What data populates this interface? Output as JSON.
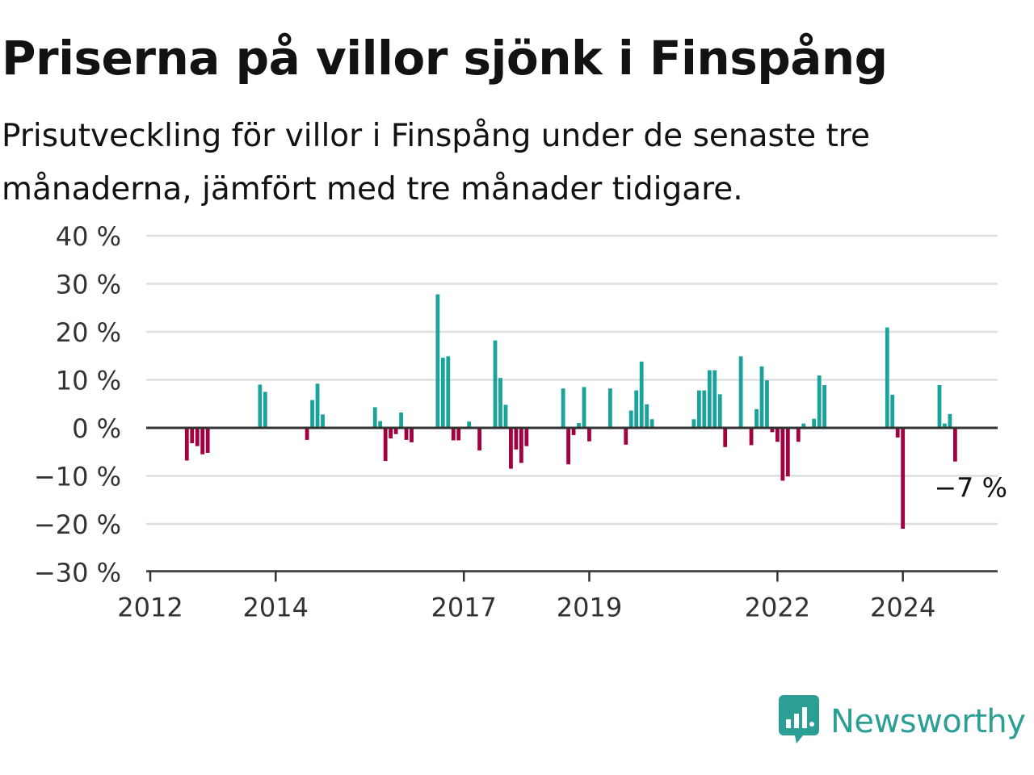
{
  "title": "Priserna på villor sjönk i Finspång",
  "subtitle": "Prisutveckling för villor i Finspång under de senaste tre månaderna, jämfört med tre månader tidigare.",
  "brand": {
    "name": "Newsworthy",
    "logo_icon": "bar-chart-speech-bubble-icon",
    "color": "#2c9f94"
  },
  "colors": {
    "positive": "#1aa39a",
    "negative": "#a3003f",
    "grid": "#dedede",
    "zero_line": "#333333",
    "axis": "#333333"
  },
  "chart_data": {
    "type": "bar",
    "title": "Priserna på villor sjönk i Finspång",
    "subtitle": "Prisutveckling för villor i Finspång under de senaste tre månaderna, jämfört med tre månader tidigare.",
    "ylim": [
      -30,
      40
    ],
    "y_ticks": [
      40,
      30,
      20,
      10,
      0,
      -10,
      -20,
      -30
    ],
    "y_tick_labels": [
      "40 %",
      "30 %",
      "20 %",
      "10 %",
      "0 %",
      "−10 %",
      "−20 %",
      "−30 %"
    ],
    "xlim": [
      "2012-01",
      "2025-09"
    ],
    "x_ticks": [
      "2012-01",
      "2014-01",
      "2017-01",
      "2019-01",
      "2022-01",
      "2024-01"
    ],
    "x_tick_labels": [
      "2012",
      "2014",
      "2017",
      "2019",
      "2022",
      "2024"
    ],
    "grid": true,
    "annotation": {
      "date": "2025-02",
      "value": -7,
      "label": "−7 %"
    },
    "series": [
      {
        "values": [
          {
            "date": "2012-08",
            "value": -6.8
          },
          {
            "date": "2012-09",
            "value": -3.2
          },
          {
            "date": "2012-10",
            "value": -3.8
          },
          {
            "date": "2012-11",
            "value": -5.5
          },
          {
            "date": "2012-12",
            "value": -5.2
          },
          {
            "date": "2013-10",
            "value": 9.0
          },
          {
            "date": "2013-11",
            "value": 7.5
          },
          {
            "date": "2014-07",
            "value": -2.5
          },
          {
            "date": "2014-08",
            "value": 5.8
          },
          {
            "date": "2014-09",
            "value": 9.2
          },
          {
            "date": "2014-10",
            "value": 2.8
          },
          {
            "date": "2015-08",
            "value": 4.3
          },
          {
            "date": "2015-09",
            "value": 1.4
          },
          {
            "date": "2015-10",
            "value": -6.9
          },
          {
            "date": "2015-11",
            "value": -2.2
          },
          {
            "date": "2015-12",
            "value": -1.3
          },
          {
            "date": "2016-01",
            "value": 3.2
          },
          {
            "date": "2016-02",
            "value": -2.5
          },
          {
            "date": "2016-03",
            "value": -3.0
          },
          {
            "date": "2016-08",
            "value": 27.8
          },
          {
            "date": "2016-09",
            "value": 14.6
          },
          {
            "date": "2016-10",
            "value": 14.9
          },
          {
            "date": "2016-11",
            "value": -2.6
          },
          {
            "date": "2016-12",
            "value": -2.6
          },
          {
            "date": "2017-02",
            "value": 1.3
          },
          {
            "date": "2017-04",
            "value": -4.7
          },
          {
            "date": "2017-07",
            "value": 18.2
          },
          {
            "date": "2017-08",
            "value": 10.4
          },
          {
            "date": "2017-09",
            "value": 4.8
          },
          {
            "date": "2017-10",
            "value": -8.5
          },
          {
            "date": "2017-11",
            "value": -4.5
          },
          {
            "date": "2017-12",
            "value": -7.3
          },
          {
            "date": "2018-01",
            "value": -3.8
          },
          {
            "date": "2018-08",
            "value": 8.2
          },
          {
            "date": "2018-09",
            "value": -7.6
          },
          {
            "date": "2018-10",
            "value": -1.5
          },
          {
            "date": "2018-11",
            "value": 1.0
          },
          {
            "date": "2018-12",
            "value": 8.5
          },
          {
            "date": "2019-01",
            "value": -2.8
          },
          {
            "date": "2019-05",
            "value": 8.2
          },
          {
            "date": "2019-08",
            "value": -3.5
          },
          {
            "date": "2019-09",
            "value": 3.6
          },
          {
            "date": "2019-10",
            "value": 7.8
          },
          {
            "date": "2019-11",
            "value": 13.8
          },
          {
            "date": "2019-12",
            "value": 4.9
          },
          {
            "date": "2020-01",
            "value": 1.8
          },
          {
            "date": "2020-09",
            "value": 1.8
          },
          {
            "date": "2020-10",
            "value": 7.8
          },
          {
            "date": "2020-11",
            "value": 7.8
          },
          {
            "date": "2020-12",
            "value": 12.0
          },
          {
            "date": "2021-01",
            "value": 12.0
          },
          {
            "date": "2021-02",
            "value": 7.0
          },
          {
            "date": "2021-03",
            "value": -4.0
          },
          {
            "date": "2021-06",
            "value": 14.9
          },
          {
            "date": "2021-08",
            "value": -3.6
          },
          {
            "date": "2021-09",
            "value": 3.9
          },
          {
            "date": "2021-10",
            "value": 12.8
          },
          {
            "date": "2021-11",
            "value": 9.9
          },
          {
            "date": "2021-12",
            "value": -0.9
          },
          {
            "date": "2022-01",
            "value": -2.9
          },
          {
            "date": "2022-02",
            "value": -11.0
          },
          {
            "date": "2022-03",
            "value": -10.1
          },
          {
            "date": "2022-05",
            "value": -2.9
          },
          {
            "date": "2022-06",
            "value": 0.9
          },
          {
            "date": "2022-08",
            "value": 1.9
          },
          {
            "date": "2022-09",
            "value": 10.9
          },
          {
            "date": "2022-10",
            "value": 8.9
          },
          {
            "date": "2023-10",
            "value": 20.9
          },
          {
            "date": "2023-11",
            "value": 6.9
          },
          {
            "date": "2023-12",
            "value": -2.0
          },
          {
            "date": "2024-01",
            "value": -21.0
          },
          {
            "date": "2024-08",
            "value": 8.9
          },
          {
            "date": "2024-09",
            "value": 0.9
          },
          {
            "date": "2024-10",
            "value": 2.9
          },
          {
            "date": "2024-11",
            "value": -7.0
          }
        ]
      }
    ]
  }
}
